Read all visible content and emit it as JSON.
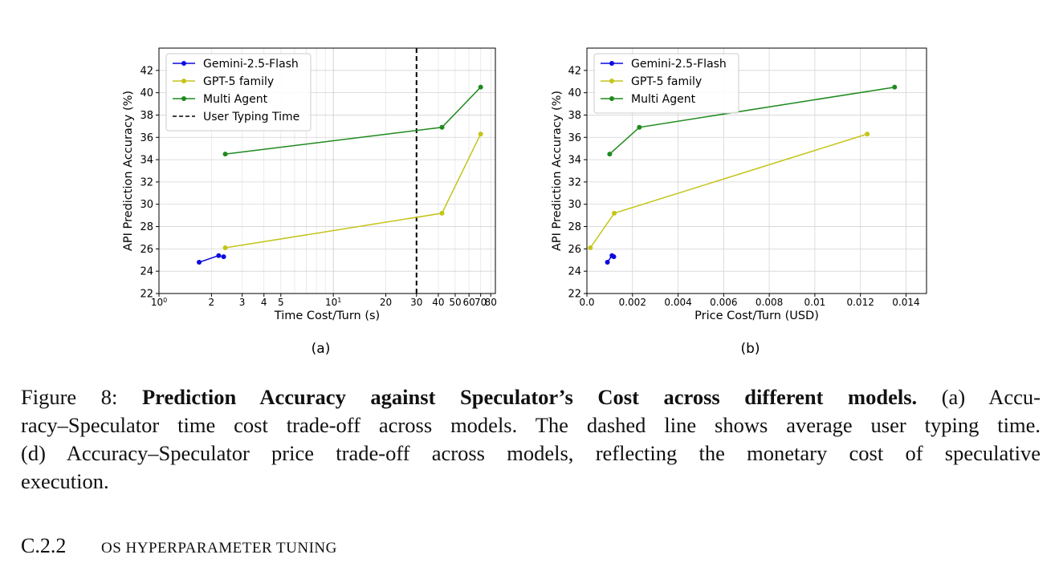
{
  "figure": {
    "subfig_a": "(a)",
    "subfig_b": "(b)",
    "caption_label": "Figure 8:",
    "caption_bold": "Prediction Accuracy against Speculator’s Cost across different models.",
    "caption_line1_rest": "(a) Accu-",
    "caption_line2": "racy–Speculator time cost trade-off across models. The dashed line shows average user typing time.",
    "caption_line3": "(d) Accuracy–Speculator price trade-off across models, reflecting the monetary cost of speculative",
    "caption_line4": "execution."
  },
  "section": {
    "number": "C.2.2",
    "title": "OS hyperparameter tuning"
  },
  "chart_data": [
    {
      "type": "line",
      "xscale": "log",
      "xlabel": "Time Cost/Turn (s)",
      "ylabel": "API Prediction Accuracy (%)",
      "xlim": [
        1,
        85
      ],
      "ylim": [
        22,
        44
      ],
      "grid": true,
      "legend_position": "top-left",
      "x_tick_labels": [
        {
          "value": 1,
          "label": "10",
          "sup": "0"
        },
        {
          "value": 2,
          "label": "2"
        },
        {
          "value": 3,
          "label": "3"
        },
        {
          "value": 4,
          "label": "4"
        },
        {
          "value": 5,
          "label": "5"
        },
        {
          "value": 10,
          "label": "10",
          "sup": "1"
        },
        {
          "value": 20,
          "label": "20"
        },
        {
          "value": 30,
          "label": "30"
        },
        {
          "value": 40,
          "label": "40"
        },
        {
          "value": 50,
          "label": "50"
        },
        {
          "value": 60,
          "label": "60"
        },
        {
          "value": 70,
          "label": "70"
        },
        {
          "value": 80,
          "label": "80"
        }
      ],
      "y_ticks": [
        22,
        24,
        26,
        28,
        30,
        32,
        34,
        36,
        38,
        40,
        42
      ],
      "series": [
        {
          "name": "Gemini-2.5-Flash",
          "color": "#0a0ae0",
          "x": [
            1.7,
            2.2,
            2.35
          ],
          "y": [
            24.8,
            25.4,
            25.3
          ]
        },
        {
          "name": "GPT-5 family",
          "color": "#c4c41a",
          "x": [
            2.4,
            42,
            70
          ],
          "y": [
            26.1,
            29.2,
            36.3
          ]
        },
        {
          "name": "Multi Agent",
          "color": "#1e8a1e",
          "x": [
            2.4,
            42,
            70
          ],
          "y": [
            34.5,
            36.9,
            40.5
          ]
        }
      ],
      "vline": {
        "name": "User Typing Time",
        "x": 30,
        "color": "#000000",
        "style": "dashed"
      }
    },
    {
      "type": "line",
      "xlabel": "Price Cost/Turn (USD)",
      "ylabel": "API Prediction Accuracy (%)",
      "xlim": [
        0,
        0.0149
      ],
      "ylim": [
        22,
        44
      ],
      "grid": true,
      "legend_position": "top-left",
      "x_tick_labels": [
        {
          "value": 0,
          "label": "0.0"
        },
        {
          "value": 0.002,
          "label": "0.002"
        },
        {
          "value": 0.004,
          "label": "0.004"
        },
        {
          "value": 0.006,
          "label": "0.006"
        },
        {
          "value": 0.008,
          "label": "0.008"
        },
        {
          "value": 0.01,
          "label": "0.01"
        },
        {
          "value": 0.012,
          "label": "0.012"
        },
        {
          "value": 0.014,
          "label": "0.014"
        }
      ],
      "y_ticks": [
        22,
        24,
        26,
        28,
        30,
        32,
        34,
        36,
        38,
        40,
        42
      ],
      "series": [
        {
          "name": "Gemini-2.5-Flash",
          "color": "#0a0ae0",
          "x": [
            0.0009,
            0.0011,
            0.00118
          ],
          "y": [
            24.8,
            25.4,
            25.3
          ]
        },
        {
          "name": "GPT-5 family",
          "color": "#c4c41a",
          "x": [
            0.00015,
            0.0012,
            0.0123
          ],
          "y": [
            26.1,
            29.2,
            36.3
          ]
        },
        {
          "name": "Multi Agent",
          "color": "#1e8a1e",
          "x": [
            0.001,
            0.0023,
            0.0135
          ],
          "y": [
            34.5,
            36.9,
            40.5
          ]
        }
      ]
    }
  ]
}
